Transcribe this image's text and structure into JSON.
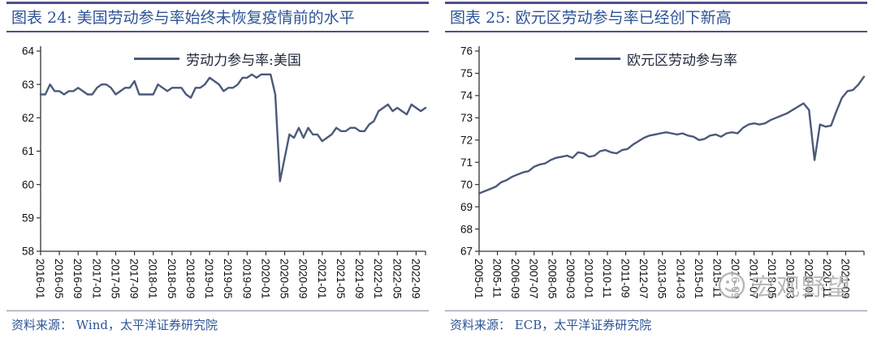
{
  "panels": [
    {
      "title": "图表 24: 美国劳动参与率始终未恢复疫情前的水平",
      "source": "资料来源： Wind，太平洋证券研究院"
    },
    {
      "title": "图表 25:  欧元区劳动参与率已经创下新高",
      "source": "资料来源： ECB，太平洋证券研究院"
    }
  ],
  "watermark": {
    "text": "宏观野望",
    "logo": "smiley-face-logo"
  },
  "colors": {
    "line": "#4A5A7A",
    "title_text": "#2E5496",
    "title_border": "#50508A",
    "axis": "#333333"
  },
  "chart_data": [
    {
      "type": "line",
      "title": "图表 24: 美国劳动参与率始终未恢复疫情前的水平",
      "legend": "劳动力参与率:美国",
      "legend_position": "top-center",
      "line_color": "#4A5A7A",
      "xlabel": "",
      "ylabel": "",
      "grid": false,
      "ylim": [
        58,
        64
      ],
      "ytick_step": 1,
      "x_start": "2016-01",
      "x_step_months": 1,
      "xtick_interval_months": 4,
      "xtick_labels": [
        "2016-01",
        "2016-05",
        "2016-09",
        "2017-01",
        "2017-05",
        "2017-09",
        "2018-01",
        "2018-05",
        "2018-09",
        "2019-01",
        "2019-05",
        "2019-09",
        "2020-01",
        "2020-05",
        "2020-09",
        "2021-01",
        "2021-05",
        "2021-09",
        "2022-01",
        "2022-05",
        "2022-09"
      ],
      "values": [
        62.7,
        62.7,
        63.0,
        62.8,
        62.8,
        62.7,
        62.8,
        62.8,
        62.9,
        62.8,
        62.7,
        62.7,
        62.9,
        63.0,
        63.0,
        62.9,
        62.7,
        62.8,
        62.9,
        62.9,
        63.1,
        62.7,
        62.7,
        62.7,
        62.7,
        63.0,
        62.9,
        62.8,
        62.9,
        62.9,
        62.9,
        62.7,
        62.6,
        62.9,
        62.9,
        63.0,
        63.2,
        63.1,
        63.0,
        62.8,
        62.9,
        62.9,
        63.0,
        63.2,
        63.2,
        63.3,
        63.2,
        63.3,
        63.3,
        63.3,
        62.7,
        60.1,
        60.8,
        61.5,
        61.4,
        61.7,
        61.4,
        61.7,
        61.5,
        61.5,
        61.3,
        61.4,
        61.5,
        61.7,
        61.6,
        61.6,
        61.7,
        61.7,
        61.6,
        61.6,
        61.8,
        61.9,
        62.2,
        62.3,
        62.4,
        62.2,
        62.3,
        62.2,
        62.1,
        62.4,
        62.3,
        62.2,
        62.3
      ]
    },
    {
      "type": "line",
      "title": "图表 25: 欧元区劳动参与率已经创下新高",
      "legend": "欧元区劳动参与率",
      "legend_position": "top-center",
      "line_color": "#4A5A7A",
      "xlabel": "",
      "ylabel": "",
      "grid": false,
      "ylim": [
        67,
        76
      ],
      "ytick_step": 1,
      "x_start": "2005-01",
      "x_step_months": 3,
      "xtick_interval_months": 10,
      "xtick_labels": [
        "2005-01",
        "2005-11",
        "2006-09",
        "2007-07",
        "2008-05",
        "2009-03",
        "2010-01",
        "2010-11",
        "2011-09",
        "2012-07",
        "2013-05",
        "2014-03",
        "2015-01",
        "2015-11",
        "2016-09",
        "2017-07",
        "2018-05",
        "2019-03",
        "2020-01",
        "2020-11",
        "2021-09"
      ],
      "values": [
        69.6,
        69.7,
        69.8,
        69.9,
        70.1,
        70.2,
        70.35,
        70.45,
        70.55,
        70.6,
        70.8,
        70.9,
        70.95,
        71.1,
        71.2,
        71.25,
        71.3,
        71.2,
        71.45,
        71.4,
        71.25,
        71.3,
        71.5,
        71.55,
        71.45,
        71.4,
        71.55,
        71.6,
        71.8,
        71.95,
        72.1,
        72.2,
        72.25,
        72.3,
        72.35,
        72.3,
        72.25,
        72.3,
        72.2,
        72.15,
        72.0,
        72.05,
        72.2,
        72.25,
        72.15,
        72.3,
        72.35,
        72.3,
        72.55,
        72.7,
        72.75,
        72.7,
        72.75,
        72.9,
        73.0,
        73.1,
        73.2,
        73.35,
        73.5,
        73.65,
        73.35,
        71.1,
        72.7,
        72.6,
        72.65,
        73.3,
        73.9,
        74.2,
        74.25,
        74.5,
        74.85
      ]
    }
  ]
}
